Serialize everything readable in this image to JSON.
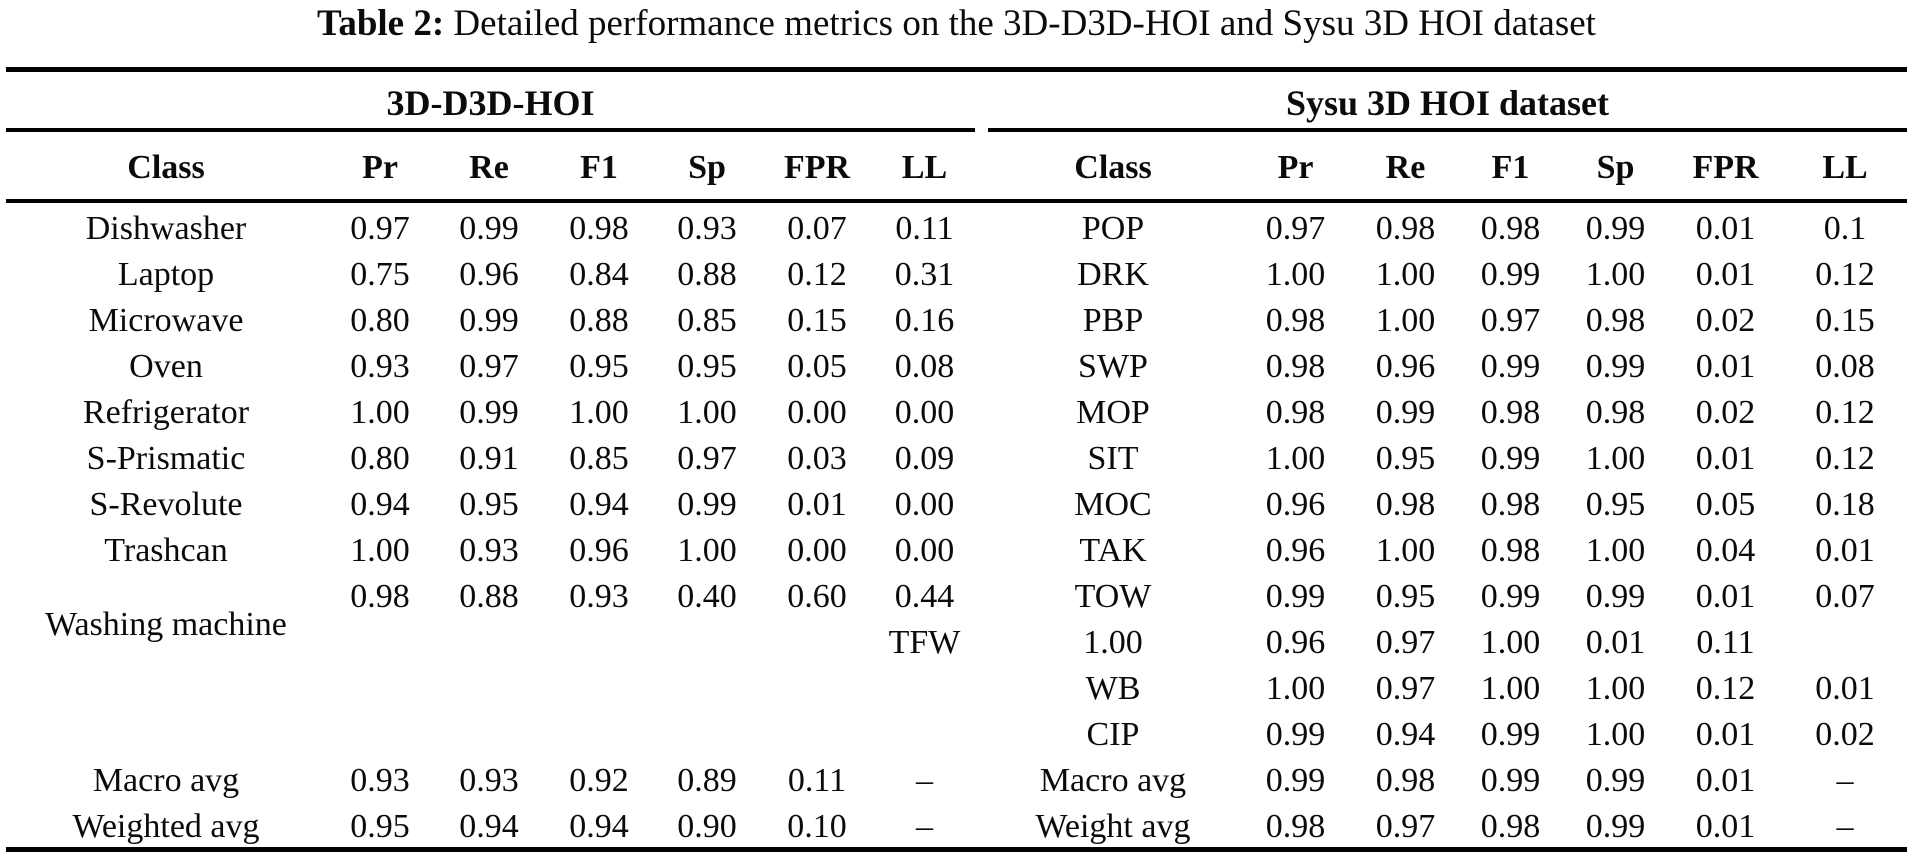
{
  "title": {
    "label": "Table 2:",
    "text": " Detailed performance metrics on the 3D-D3D-HOI and Sysu 3D HOI dataset"
  },
  "left_table": {
    "group_header": "3D-D3D-HOI",
    "columns": [
      "Class",
      "Pr",
      "Re",
      "F1",
      "Sp",
      "FPR",
      "LL"
    ],
    "offset_label": "Washing machine",
    "rows": [
      [
        "Dishwasher",
        "0.97",
        "0.99",
        "0.98",
        "0.93",
        "0.07",
        "0.11"
      ],
      [
        "Laptop",
        "0.75",
        "0.96",
        "0.84",
        "0.88",
        "0.12",
        "0.31"
      ],
      [
        "Microwave",
        "0.80",
        "0.99",
        "0.88",
        "0.85",
        "0.15",
        "0.16"
      ],
      [
        "Oven",
        "0.93",
        "0.97",
        "0.95",
        "0.95",
        "0.05",
        "0.08"
      ],
      [
        "Refrigerator",
        "1.00",
        "0.99",
        "1.00",
        "1.00",
        "0.00",
        "0.00"
      ],
      [
        "S-Prismatic",
        "0.80",
        "0.91",
        "0.85",
        "0.97",
        "0.03",
        "0.09"
      ],
      [
        "S-Revolute",
        "0.94",
        "0.95",
        "0.94",
        "0.99",
        "0.01",
        "0.00"
      ],
      [
        "Trashcan",
        "1.00",
        "0.93",
        "0.96",
        "1.00",
        "0.00",
        "0.00"
      ],
      [
        "",
        "0.98",
        "0.88",
        "0.93",
        "0.40",
        "0.60",
        "0.44"
      ],
      [
        "",
        "",
        "",
        "",
        "",
        "",
        "TFW"
      ],
      [
        "",
        "",
        "",
        "",
        "",
        "",
        ""
      ],
      [
        "",
        "",
        "",
        "",
        "",
        "",
        ""
      ],
      [
        "Macro avg",
        "0.93",
        "0.93",
        "0.92",
        "0.89",
        "0.11",
        "–"
      ],
      [
        "Weighted avg",
        "0.95",
        "0.94",
        "0.94",
        "0.90",
        "0.10",
        "–"
      ]
    ]
  },
  "right_table": {
    "group_header": "Sysu 3D HOI dataset",
    "columns": [
      "Class",
      "Pr",
      "Re",
      "F1",
      "Sp",
      "FPR",
      "LL"
    ],
    "rows": [
      [
        "POP",
        "0.97",
        "0.98",
        "0.98",
        "0.99",
        "0.01",
        "0.1"
      ],
      [
        "DRK",
        "1.00",
        "1.00",
        "0.99",
        "1.00",
        "0.01",
        "0.12"
      ],
      [
        "PBP",
        "0.98",
        "1.00",
        "0.97",
        "0.98",
        "0.02",
        "0.15"
      ],
      [
        "SWP",
        "0.98",
        "0.96",
        "0.99",
        "0.99",
        "0.01",
        "0.08"
      ],
      [
        "MOP",
        "0.98",
        "0.99",
        "0.98",
        "0.98",
        "0.02",
        "0.12"
      ],
      [
        "SIT",
        "1.00",
        "0.95",
        "0.99",
        "1.00",
        "0.01",
        "0.12"
      ],
      [
        "MOC",
        "0.96",
        "0.98",
        "0.98",
        "0.95",
        "0.05",
        "0.18"
      ],
      [
        "TAK",
        "0.96",
        "1.00",
        "0.98",
        "1.00",
        "0.04",
        "0.01"
      ],
      [
        "TOW",
        "0.99",
        "0.95",
        "0.99",
        "0.99",
        "0.01",
        "0.07"
      ],
      [
        "1.00",
        "0.96",
        "0.97",
        "1.00",
        "0.01",
        "0.11",
        ""
      ],
      [
        "WB",
        "1.00",
        "0.97",
        "1.00",
        "1.00",
        "0.12",
        "0.01"
      ],
      [
        "CIP",
        "0.99",
        "0.94",
        "0.99",
        "1.00",
        "0.01",
        "0.02"
      ],
      [
        "Macro avg",
        "0.99",
        "0.98",
        "0.99",
        "0.99",
        "0.01",
        "–"
      ],
      [
        "Weight avg",
        "0.98",
        "0.97",
        "0.98",
        "0.99",
        "0.01",
        "–"
      ]
    ]
  }
}
